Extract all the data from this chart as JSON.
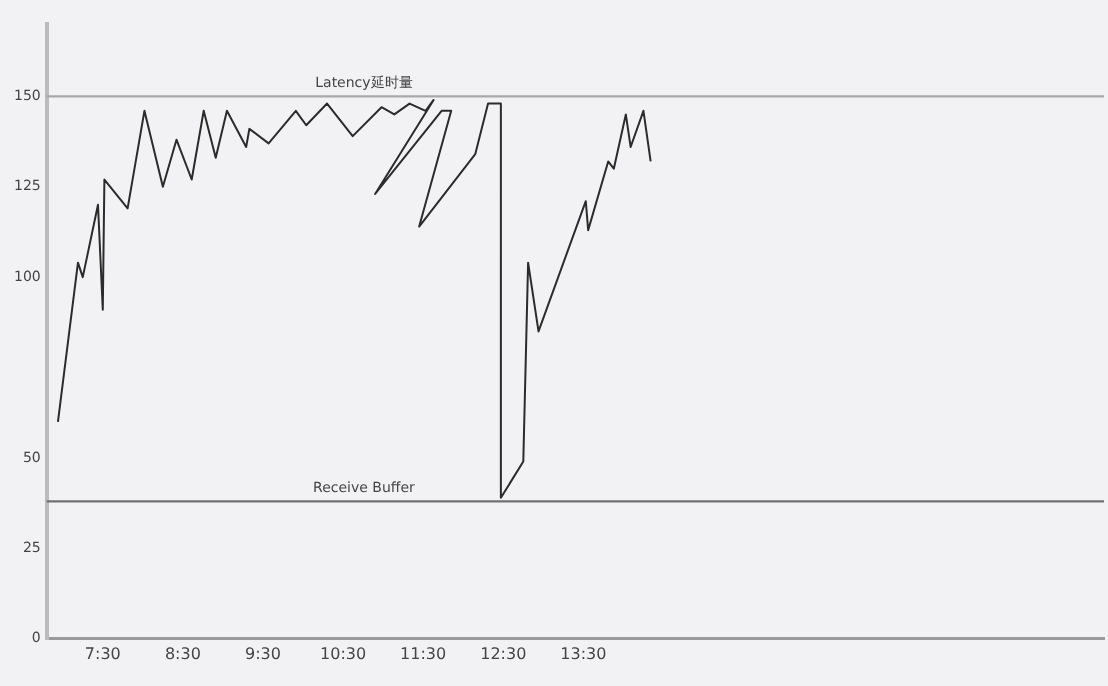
{
  "chart_data": {
    "type": "line",
    "x": [
      6.94,
      7.19,
      7.25,
      7.44,
      7.5,
      7.52,
      7.81,
      8.02,
      8.25,
      8.42,
      8.61,
      8.76,
      8.91,
      9.05,
      9.29,
      9.33,
      9.57,
      9.91,
      10.04,
      10.3,
      10.62,
      10.98,
      11.14,
      11.33,
      11.53,
      11.63,
      10.9,
      11.73,
      11.85,
      11.45,
      12.15,
      12.31,
      12.47,
      12.47,
      12.75,
      12.81,
      12.94,
      13.53,
      13.56,
      13.81,
      13.88,
      14.03,
      14.09,
      14.25,
      14.34
    ],
    "series": [
      {
        "color": "#2b2b2b",
        "values": [
          60,
          104,
          100,
          120,
          91,
          127,
          119,
          146,
          125,
          138,
          127,
          146,
          133,
          146,
          136,
          141,
          137,
          146,
          142,
          148,
          139,
          147,
          145,
          148,
          146,
          149,
          123,
          146,
          146,
          114,
          134,
          148,
          148,
          39,
          49,
          104,
          85,
          121,
          113,
          132,
          130,
          145,
          136,
          146,
          132
        ]
      }
    ],
    "xlim": [
      6.8,
      20
    ],
    "xticks": [
      {
        "value": 7.5,
        "label": "7:30"
      },
      {
        "value": 8.5,
        "label": "8:30"
      },
      {
        "value": 9.5,
        "label": "9:30"
      },
      {
        "value": 10.5,
        "label": "10:30"
      },
      {
        "value": 11.5,
        "label": "11:30"
      },
      {
        "value": 12.5,
        "label": "12:30"
      },
      {
        "value": 13.5,
        "label": "13:30"
      }
    ],
    "ylim": [
      0,
      170
    ],
    "yticks": [
      0,
      25,
      50,
      100,
      125,
      150
    ],
    "ref_lines": [
      {
        "axis": "y",
        "value": 150,
        "label": "Latency延时量",
        "color": "#a8a8a8"
      },
      {
        "axis": "y",
        "value": 38,
        "label": "Receive Buffer",
        "color": "#707070"
      }
    ],
    "marker": "none",
    "line_style": "solid"
  }
}
